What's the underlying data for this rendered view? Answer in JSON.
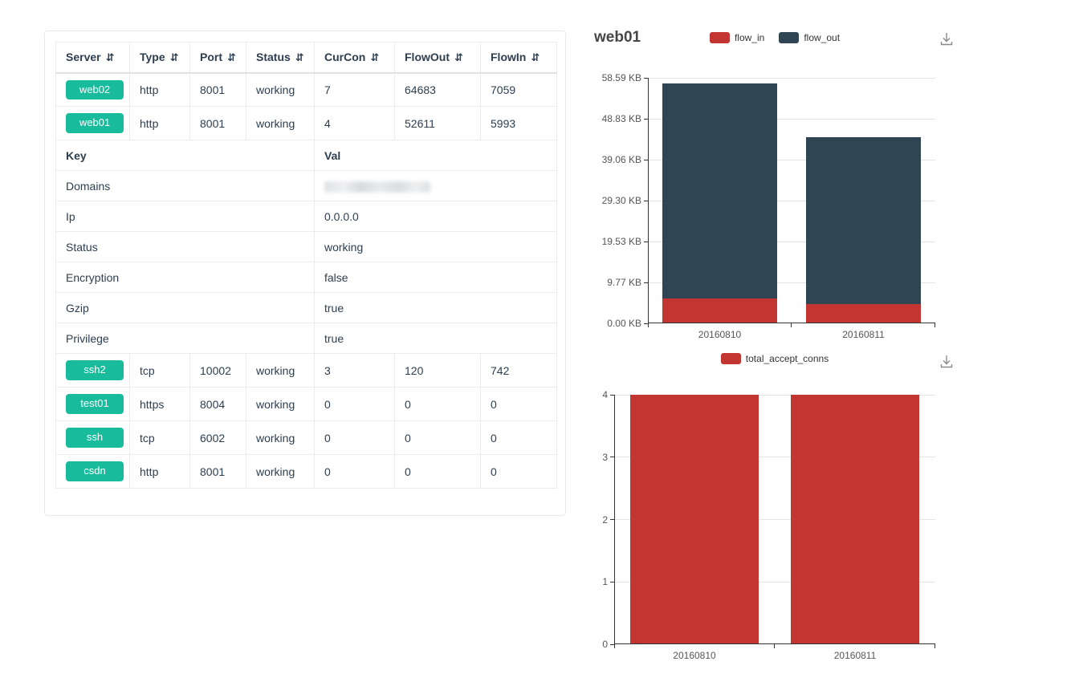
{
  "table": {
    "columns": [
      "Server",
      "Type",
      "Port",
      "Status",
      "CurCon",
      "FlowOut",
      "FlowIn"
    ],
    "sort_icon_glyph": "⇵",
    "badge_color": "#18bc9c",
    "rows_top": [
      {
        "server": "web02",
        "type": "http",
        "port": "8001",
        "status": "working",
        "curcon": "7",
        "flowout": "64683",
        "flowin": "7059"
      },
      {
        "server": "web01",
        "type": "http",
        "port": "8001",
        "status": "working",
        "curcon": "4",
        "flowout": "52611",
        "flowin": "5993"
      }
    ],
    "kv_header": {
      "key": "Key",
      "val": "Val"
    },
    "kv_rows": [
      {
        "key": "Domains",
        "val": "",
        "redacted": true
      },
      {
        "key": "Ip",
        "val": "0.0.0.0"
      },
      {
        "key": "Status",
        "val": "working"
      },
      {
        "key": "Encryption",
        "val": "false"
      },
      {
        "key": "Gzip",
        "val": "true"
      },
      {
        "key": "Privilege",
        "val": "true"
      }
    ],
    "rows_bottom": [
      {
        "server": "ssh2",
        "type": "tcp",
        "port": "10002",
        "status": "working",
        "curcon": "3",
        "flowout": "120",
        "flowin": "742"
      },
      {
        "server": "test01",
        "type": "https",
        "port": "8004",
        "status": "working",
        "curcon": "0",
        "flowout": "0",
        "flowin": "0"
      },
      {
        "server": "ssh",
        "type": "tcp",
        "port": "6002",
        "status": "working",
        "curcon": "0",
        "flowout": "0",
        "flowin": "0"
      },
      {
        "server": "csdn",
        "type": "http",
        "port": "8001",
        "status": "working",
        "curcon": "0",
        "flowout": "0",
        "flowin": "0"
      }
    ]
  },
  "chart_header": {
    "title": "web01"
  },
  "icons": {
    "download": "tray-with-down-arrow",
    "sort": "down-up-arrows"
  },
  "chart_data": [
    {
      "type": "bar",
      "stacked": true,
      "title": "web01",
      "categories": [
        "20160810",
        "20160811"
      ],
      "series": [
        {
          "name": "flow_in",
          "color": "#c23531",
          "values": [
            5.85,
            4.6
          ]
        },
        {
          "name": "flow_out",
          "color": "#2f4554",
          "values": [
            51.38,
            39.8
          ]
        }
      ],
      "unit": "KB",
      "ylim": [
        0,
        58.59
      ],
      "yticks": [
        "0.00 KB",
        "9.77 KB",
        "19.53 KB",
        "29.30 KB",
        "39.06 KB",
        "48.83 KB",
        "58.59 KB"
      ],
      "xlabel": "",
      "ylabel": "",
      "legend_position": "top-center",
      "grid": true
    },
    {
      "type": "bar",
      "stacked": false,
      "title": "",
      "categories": [
        "20160810",
        "20160811"
      ],
      "series": [
        {
          "name": "total_accept_conns",
          "color": "#c23531",
          "values": [
            4,
            4
          ]
        }
      ],
      "ylim": [
        0,
        4
      ],
      "yticks": [
        "0",
        "1",
        "2",
        "3",
        "4"
      ],
      "xlabel": "",
      "ylabel": "",
      "legend_position": "top-center",
      "grid": true
    }
  ]
}
